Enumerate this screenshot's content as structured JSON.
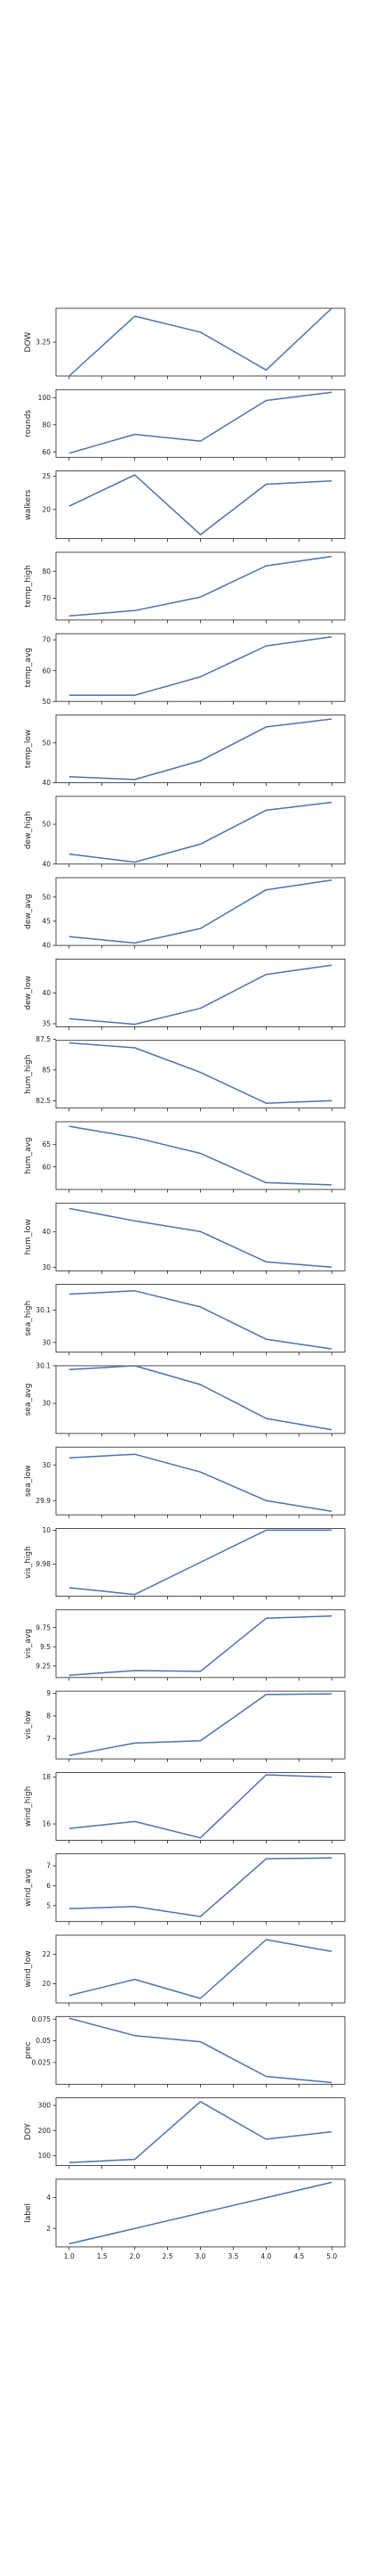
{
  "colors": {
    "line": "#4c72b0",
    "axis": "#222222",
    "background": "#ffffff"
  },
  "chart_data": [
    {
      "type": "line",
      "ylabel": "DOW",
      "x": [
        1,
        2,
        3,
        4,
        5
      ],
      "values": [
        3.08,
        3.38,
        3.3,
        3.11,
        3.42
      ],
      "ylim": [
        3.08,
        3.42
      ],
      "yticks": [
        3.25
      ],
      "xticks": []
    },
    {
      "type": "line",
      "ylabel": "rounds",
      "x": [
        1,
        2,
        3,
        4,
        5
      ],
      "values": [
        59,
        73,
        68,
        98,
        104
      ],
      "ylim": [
        56,
        106
      ],
      "yticks": [
        60,
        80,
        100
      ],
      "xticks": []
    },
    {
      "type": "line",
      "ylabel": "walkers",
      "x": [
        1,
        2,
        3,
        4,
        5
      ],
      "values": [
        20.5,
        25.2,
        16.2,
        23.8,
        24.3
      ],
      "ylim": [
        15.6,
        25.8
      ],
      "yticks": [
        20,
        25
      ],
      "xticks": []
    },
    {
      "type": "line",
      "ylabel": "temp_high",
      "x": [
        1,
        2,
        3,
        4,
        5
      ],
      "values": [
        63.5,
        65.5,
        70.5,
        82,
        85.5
      ],
      "ylim": [
        62,
        87
      ],
      "yticks": [
        70,
        80
      ],
      "xticks": []
    },
    {
      "type": "line",
      "ylabel": "temp_avg",
      "x": [
        1,
        2,
        3,
        4,
        5
      ],
      "values": [
        52,
        52,
        58,
        68,
        71
      ],
      "ylim": [
        50,
        72
      ],
      "yticks": [
        50,
        60,
        70
      ],
      "xticks": []
    },
    {
      "type": "line",
      "ylabel": "temp_low",
      "x": [
        1,
        2,
        3,
        4,
        5
      ],
      "values": [
        41.5,
        40.8,
        45.5,
        54,
        56
      ],
      "ylim": [
        40,
        57
      ],
      "yticks": [
        40,
        50
      ],
      "xticks": []
    },
    {
      "type": "line",
      "ylabel": "dew_high",
      "x": [
        1,
        2,
        3,
        4,
        5
      ],
      "values": [
        42.5,
        40.5,
        45,
        53.5,
        55.5
      ],
      "ylim": [
        40,
        57
      ],
      "yticks": [
        40,
        50
      ],
      "xticks": []
    },
    {
      "type": "line",
      "ylabel": "dew_avg",
      "x": [
        1,
        2,
        3,
        4,
        5
      ],
      "values": [
        41.8,
        40.5,
        43.5,
        51.5,
        53.5
      ],
      "ylim": [
        40,
        54
      ],
      "yticks": [
        40,
        45,
        50
      ],
      "xticks": []
    },
    {
      "type": "line",
      "ylabel": "dew_low",
      "x": [
        1,
        2,
        3,
        4,
        5
      ],
      "values": [
        35.8,
        34.9,
        37.5,
        43,
        44.5
      ],
      "ylim": [
        34.5,
        45.5
      ],
      "yticks": [
        35,
        40
      ],
      "xticks": []
    },
    {
      "type": "line",
      "ylabel": "hum_high",
      "x": [
        1,
        2,
        3,
        4,
        5
      ],
      "values": [
        87.2,
        86.8,
        84.8,
        82.3,
        82.5
      ],
      "ylim": [
        81.9,
        87.4
      ],
      "yticks": [
        82.5,
        85,
        87.5
      ],
      "xticks": []
    },
    {
      "type": "line",
      "ylabel": "hum_avg",
      "x": [
        1,
        2,
        3,
        4,
        5
      ],
      "values": [
        69,
        66.5,
        63,
        56.5,
        56
      ],
      "ylim": [
        55,
        70
      ],
      "yticks": [
        60,
        65
      ],
      "xticks": []
    },
    {
      "type": "line",
      "ylabel": "hum_low",
      "x": [
        1,
        2,
        3,
        4,
        5
      ],
      "values": [
        46.5,
        43,
        40,
        31.5,
        30
      ],
      "ylim": [
        29,
        48
      ],
      "yticks": [
        30,
        40
      ],
      "xticks": []
    },
    {
      "type": "line",
      "ylabel": "sea_high",
      "x": [
        1,
        2,
        3,
        4,
        5
      ],
      "values": [
        30.15,
        30.16,
        30.11,
        30.01,
        29.98
      ],
      "ylim": [
        29.97,
        30.18
      ],
      "yticks": [
        30.0,
        30.1
      ],
      "xticks": []
    },
    {
      "type": "line",
      "ylabel": "sea_avg",
      "x": [
        1,
        2,
        3,
        4,
        5
      ],
      "values": [
        30.09,
        30.1,
        30.05,
        29.96,
        29.93
      ],
      "ylim": [
        29.92,
        30.1
      ],
      "yticks": [
        30.0,
        30.1
      ],
      "xticks": []
    },
    {
      "type": "line",
      "ylabel": "sea_low",
      "x": [
        1,
        2,
        3,
        4,
        5
      ],
      "values": [
        30.02,
        30.03,
        29.98,
        29.9,
        29.87
      ],
      "ylim": [
        29.86,
        30.05
      ],
      "yticks": [
        29.9,
        30.0
      ],
      "xticks": []
    },
    {
      "type": "line",
      "ylabel": "vis_high",
      "x": [
        1,
        2,
        3,
        4,
        5
      ],
      "values": [
        9.966,
        9.962,
        9.981,
        10.0,
        10.0
      ],
      "ylim": [
        9.961,
        10.001
      ],
      "yticks": [
        9.98,
        10.0
      ],
      "xticks": []
    },
    {
      "type": "line",
      "ylabel": "vis_avg",
      "x": [
        1,
        2,
        3,
        4,
        5
      ],
      "values": [
        9.13,
        9.19,
        9.18,
        9.87,
        9.9
      ],
      "ylim": [
        9.1,
        9.98
      ],
      "yticks": [
        9.25,
        9.5,
        9.75
      ],
      "xticks": []
    },
    {
      "type": "line",
      "ylabel": "vis_low",
      "x": [
        1,
        2,
        3,
        4,
        5
      ],
      "values": [
        6.25,
        6.8,
        6.9,
        8.95,
        8.98
      ],
      "ylim": [
        6.1,
        9.1
      ],
      "yticks": [
        7,
        8,
        9
      ],
      "xticks": []
    },
    {
      "type": "line",
      "ylabel": "wind_high",
      "x": [
        1,
        2,
        3,
        4,
        5
      ],
      "values": [
        15.8,
        16.1,
        15.4,
        18.1,
        18.0
      ],
      "ylim": [
        15.3,
        18.2
      ],
      "yticks": [
        16,
        18
      ],
      "xticks": []
    },
    {
      "type": "line",
      "ylabel": "wind_avg",
      "x": [
        1,
        2,
        3,
        4,
        5
      ],
      "values": [
        4.85,
        4.95,
        4.45,
        7.35,
        7.4
      ],
      "ylim": [
        4.2,
        7.6
      ],
      "yticks": [
        5,
        6,
        7
      ],
      "xticks": []
    },
    {
      "type": "line",
      "ylabel": "wind_low",
      "x": [
        1,
        2,
        3,
        4,
        5
      ],
      "values": [
        19.2,
        20.3,
        19.0,
        23.0,
        22.2
      ],
      "ylim": [
        18.7,
        23.3
      ],
      "yticks": [
        20,
        22
      ],
      "xticks": []
    },
    {
      "type": "line",
      "ylabel": "prec",
      "x": [
        1,
        2,
        3,
        4,
        5
      ],
      "values": [
        0.076,
        0.056,
        0.049,
        0.009,
        0.002
      ],
      "ylim": [
        0.0,
        0.078
      ],
      "yticks": [
        0.025,
        0.05,
        0.075
      ],
      "xticks": []
    },
    {
      "type": "line",
      "ylabel": "DOY",
      "x": [
        1,
        2,
        3,
        4,
        5
      ],
      "values": [
        72,
        85,
        315,
        165,
        195
      ],
      "ylim": [
        60,
        330
      ],
      "yticks": [
        100,
        200,
        300
      ],
      "xticks": []
    },
    {
      "type": "line",
      "ylabel": "label",
      "x": [
        1,
        2,
        3,
        4,
        5
      ],
      "values": [
        1,
        2,
        3,
        4,
        5
      ],
      "ylim": [
        0.8,
        5.2
      ],
      "yticks": [
        2,
        4
      ],
      "xlim": [
        0.8,
        5.2
      ],
      "xticks": [
        "1.0",
        "1.5",
        "2.0",
        "2.5",
        "3.0",
        "3.5",
        "4.0",
        "4.5",
        "5.0"
      ]
    }
  ]
}
